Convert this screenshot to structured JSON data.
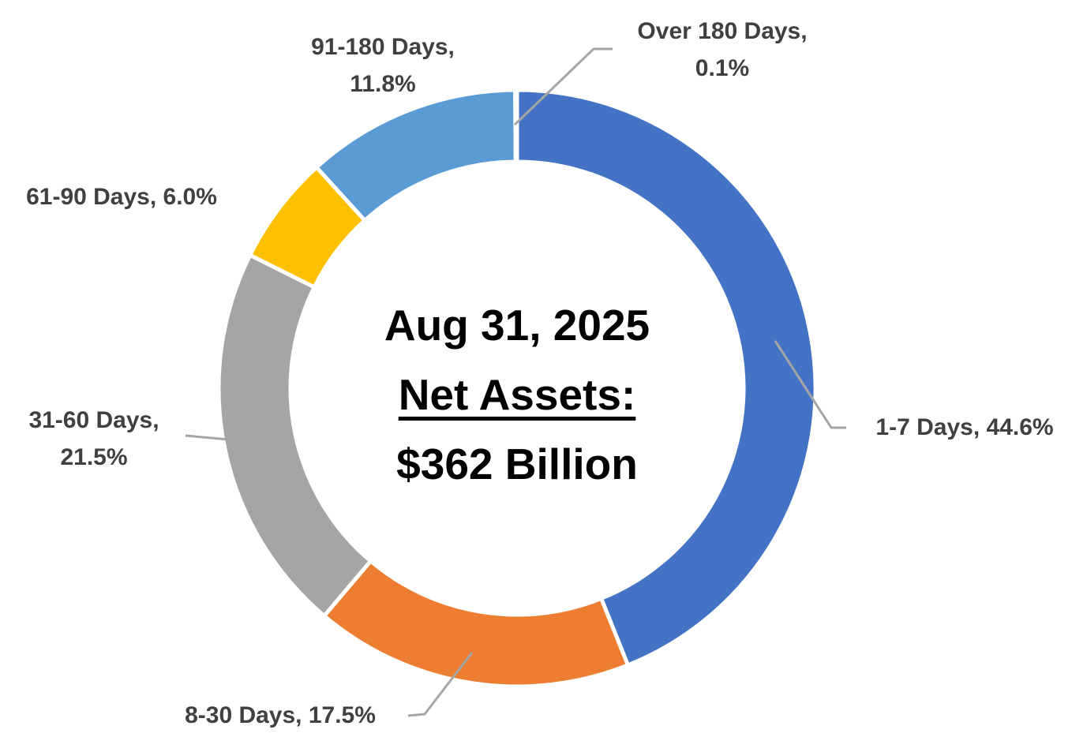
{
  "chart_data": {
    "type": "pie",
    "subtype": "donut",
    "title": "",
    "center_text": {
      "line1": "Aug 31, 2025",
      "line2": "Net Assets:",
      "line3": "$362 Billion"
    },
    "categories": [
      "1-7 Days",
      "8-30 Days",
      "31-60 Days",
      "61-90 Days",
      "91-180 Days",
      "Over 180 Days"
    ],
    "values": [
      44.6,
      17.5,
      21.5,
      6.0,
      11.8,
      0.1
    ],
    "unit": "%",
    "slices": [
      {
        "id": "1-7-days",
        "category": "1-7 Days",
        "value": 44.6,
        "label": "1-7 Days, 44.6%",
        "color": "#4472C4"
      },
      {
        "id": "8-30-days",
        "category": "8-30 Days",
        "value": 17.5,
        "label": "8-30 Days, 17.5%",
        "color": "#ED7D31"
      },
      {
        "id": "31-60-days",
        "category": "31-60 Days",
        "value": 21.5,
        "label": "31-60 Days, 21.5%",
        "color": "#A5A5A5"
      },
      {
        "id": "61-90-days",
        "category": "61-90 Days",
        "value": 6.0,
        "label": "61-90 Days, 6.0%",
        "color": "#FFC000"
      },
      {
        "id": "91-180-days",
        "category": "91-180 Days",
        "value": 11.8,
        "label": "91-180 Days, 11.8%",
        "color": "#5B9BD5"
      },
      {
        "id": "over-180-days",
        "category": "Over 180 Days",
        "value": 0.1,
        "label": "Over 180 Days, 0.1%",
        "color": "#70AD47"
      }
    ],
    "layout": {
      "start_angle_deg": 0,
      "direction": "clockwise",
      "hole": true,
      "label_color": "#404040",
      "leader_line_color": "#A6A6A6",
      "slice_border_color": "#FFFFFF",
      "center_text_color": "#000000",
      "legend": "none"
    }
  }
}
